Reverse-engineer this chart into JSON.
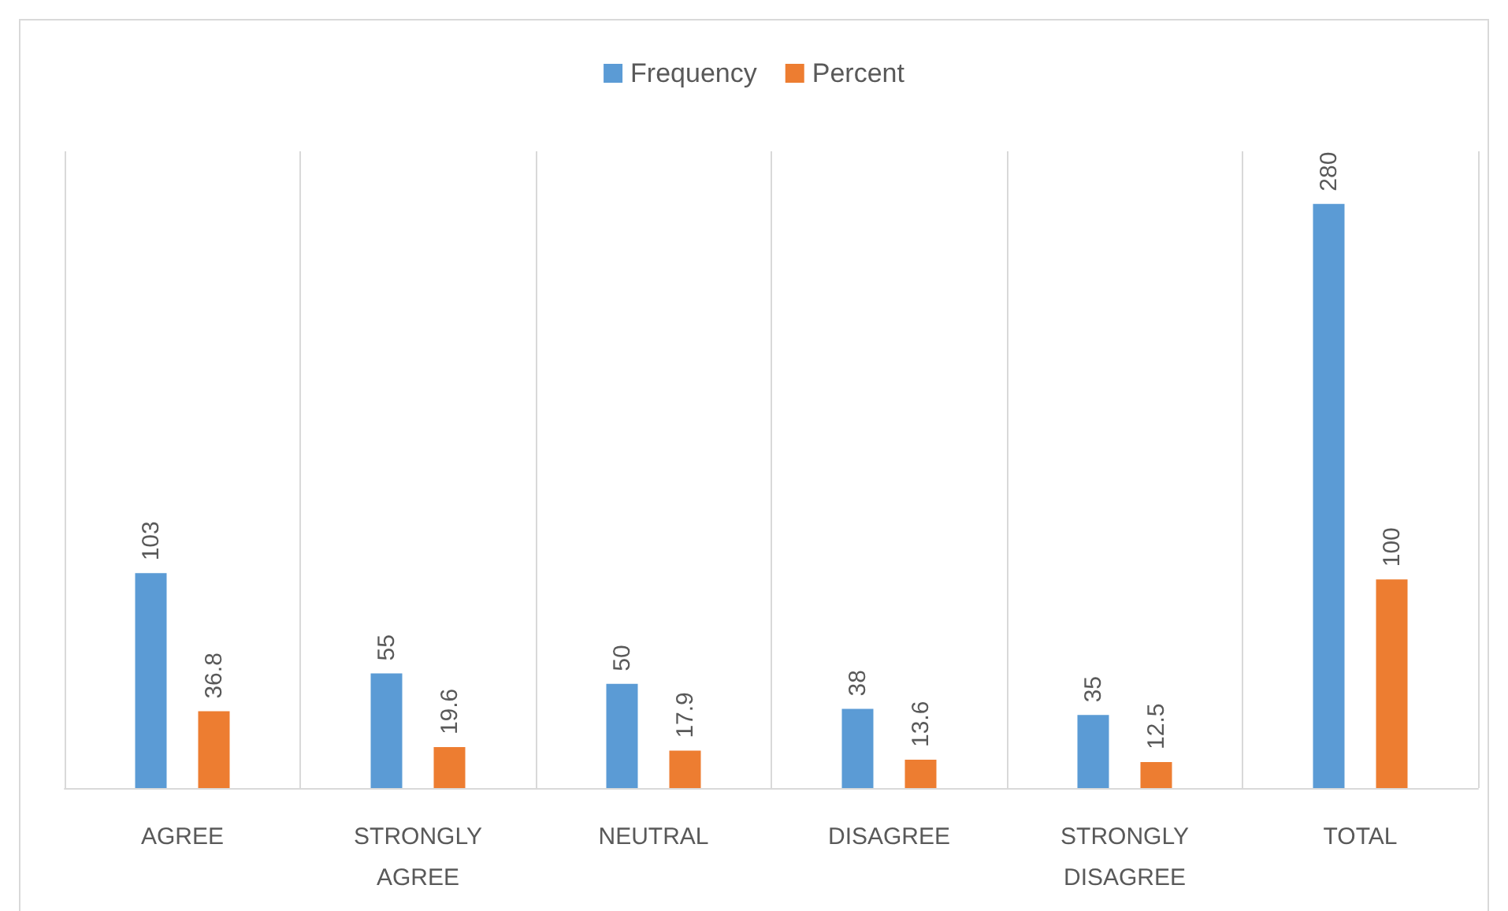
{
  "chart_data": {
    "type": "bar",
    "categories": [
      "AGREE",
      "STRONGLY AGREE",
      "NEUTRAL",
      "DISAGREE",
      "STRONGLY DISAGREE",
      "TOTAL"
    ],
    "series": [
      {
        "name": "Frequency",
        "color": "#5b9bd5",
        "values": [
          103,
          55,
          50,
          38,
          35,
          280
        ]
      },
      {
        "name": "Percent",
        "color": "#ed7d31",
        "values": [
          36.8,
          19.6,
          17.9,
          13.6,
          12.5,
          100
        ]
      }
    ],
    "data_labels": true,
    "grid": "x",
    "legend": "top"
  }
}
